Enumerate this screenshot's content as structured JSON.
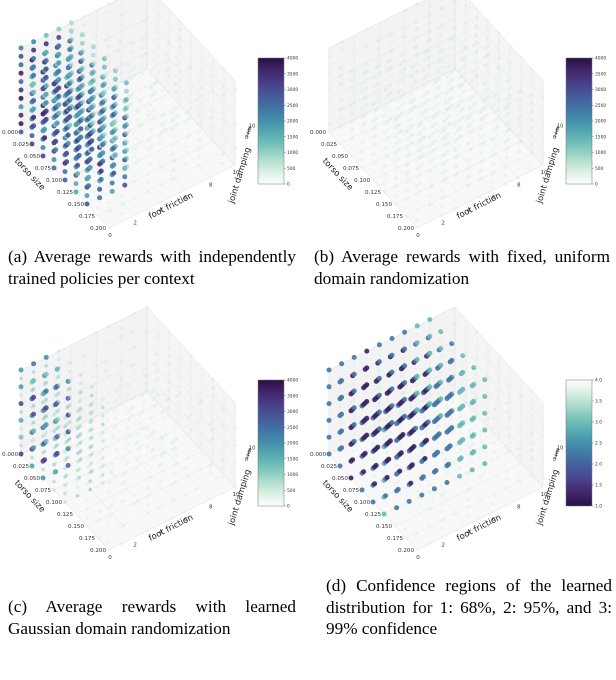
{
  "chart_data": [
    {
      "type": "scatter",
      "panel": "a",
      "xlabel": "foot friction",
      "ylabel": "torso size",
      "zlabel": "joint damping",
      "x_ticks": [
        "0",
        "2",
        "4",
        "6",
        "8",
        "10"
      ],
      "y_ticks": [
        "0.000",
        "0.025",
        "0.050",
        "0.075",
        "0.100",
        "0.125",
        "0.150",
        "0.175",
        "0.200"
      ],
      "z_ticks": [
        "0",
        "2",
        "4",
        "6",
        "8",
        "10"
      ],
      "xlim": [
        0,
        10
      ],
      "ylim": [
        0,
        0.2
      ],
      "zlim": [
        0,
        10
      ],
      "colorbar": {
        "min": 0,
        "max": 4000,
        "ticks": [
          "0",
          "500",
          "1000",
          "1500",
          "2000",
          "2500",
          "3000",
          "3500",
          "4000"
        ],
        "colors": [
          "#fdfefc",
          "#2a0f45"
        ]
      },
      "fill_pattern": "dense-low-friction"
    },
    {
      "type": "scatter",
      "panel": "b",
      "xlabel": "foot friction",
      "ylabel": "torso size",
      "zlabel": "joint damping",
      "x_ticks": [
        "0",
        "2",
        "4",
        "6",
        "8",
        "10"
      ],
      "y_ticks": [
        "0.000",
        "0.025",
        "0.050",
        "0.075",
        "0.100",
        "0.125",
        "0.150",
        "0.175",
        "0.200"
      ],
      "z_ticks": [
        "0",
        "2",
        "4",
        "6",
        "8",
        "10"
      ],
      "xlim": [
        0,
        10
      ],
      "ylim": [
        0,
        0.2
      ],
      "zlim": [
        0,
        10
      ],
      "colorbar": {
        "min": 0,
        "max": 4000,
        "ticks": [
          "0",
          "500",
          "1000",
          "1500",
          "2000",
          "2500",
          "3000",
          "3500",
          "4000"
        ],
        "colors": [
          "#fdfefc",
          "#2a0f45"
        ]
      },
      "fill_pattern": "faint-uniform"
    },
    {
      "type": "scatter",
      "panel": "c",
      "xlabel": "foot friction",
      "ylabel": "torso size",
      "zlabel": "joint damping",
      "x_ticks": [
        "0",
        "2",
        "4",
        "6",
        "8",
        "10"
      ],
      "y_ticks": [
        "0.000",
        "0.025",
        "0.050",
        "0.075",
        "0.100",
        "0.125",
        "0.150",
        "0.175",
        "0.200"
      ],
      "z_ticks": [
        "0",
        "2",
        "4",
        "6",
        "8",
        "10"
      ],
      "xlim": [
        0,
        10
      ],
      "ylim": [
        0,
        0.2
      ],
      "zlim": [
        0,
        10
      ],
      "colorbar": {
        "min": 0,
        "max": 4000,
        "ticks": [
          "0",
          "500",
          "1000",
          "1500",
          "2000",
          "2500",
          "3000",
          "3500",
          "4000"
        ],
        "colors": [
          "#fdfefc",
          "#2a0f45"
        ]
      },
      "fill_pattern": "sparse-low-friction"
    },
    {
      "type": "scatter",
      "panel": "d",
      "xlabel": "foot friction",
      "ylabel": "torso size",
      "zlabel": "joint damping",
      "x_ticks": [
        "0",
        "2",
        "4",
        "6",
        "8",
        "10"
      ],
      "y_ticks": [
        "0.000",
        "0.025",
        "0.050",
        "0.075",
        "0.100",
        "0.125",
        "0.150",
        "0.175",
        "0.200"
      ],
      "z_ticks": [
        "0",
        "2",
        "4",
        "6",
        "8",
        "10"
      ],
      "xlim": [
        0,
        10
      ],
      "ylim": [
        0,
        0.2
      ],
      "zlim": [
        0,
        10
      ],
      "colorbar": {
        "min": 1.0,
        "max": 4.0,
        "ticks": [
          "1.0",
          "1.5",
          "2.0",
          "2.5",
          "3.0",
          "3.5",
          "4.0"
        ],
        "colors": [
          "#2a0f45",
          "#fdfefc"
        ]
      },
      "fill_pattern": "confidence-regions"
    }
  ],
  "captions": {
    "a": "(a) Average rewards with independently trained policies per context",
    "b": "(b) Average rewards with fixed, uniform domain randomization",
    "c": "(c) Average rewards with learned Gaussian domain randomization",
    "d": "(d) Confidence regions of the learned distribution for 1: 68%, 2: 95%, and 3: 99% confidence"
  }
}
